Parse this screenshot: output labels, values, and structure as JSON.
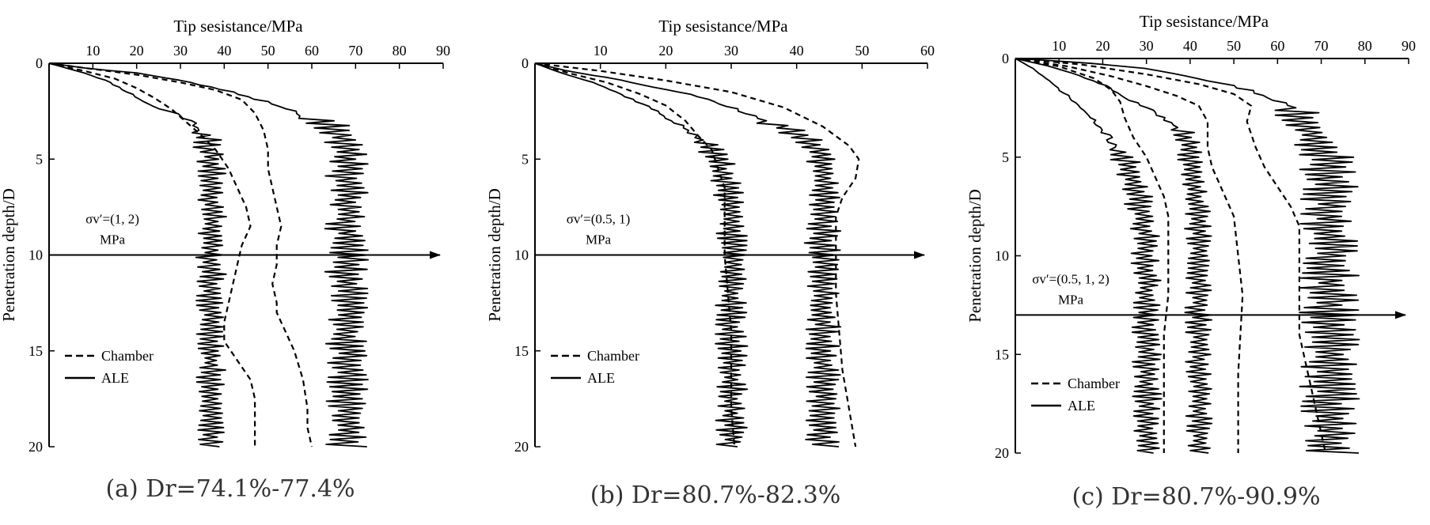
{
  "chart_data": [
    {
      "type": "line",
      "xlabel": "Tip sesistance/MPa",
      "ylabel": "Penetration depth/D",
      "xlim": [
        0,
        90
      ],
      "ylim": [
        0,
        20
      ],
      "xticks": [
        10,
        20,
        30,
        40,
        50,
        60,
        70,
        80,
        90
      ],
      "yticks": [
        0,
        5,
        10,
        15,
        20
      ],
      "y_inverted": true,
      "legend": {
        "placement": "bottom-left",
        "entries": [
          {
            "label": "Chamber",
            "style": "dashed"
          },
          {
            "label": "ALE",
            "style": "solid"
          }
        ]
      },
      "annotation": {
        "text": "σv′=(1, 2)",
        "unit": "MPa",
        "arrow_depth": 10
      },
      "caption": "(a) Dr=74.1%-77.4%",
      "series": [
        {
          "style": "dashed",
          "points": [
            [
              0,
              0
            ],
            [
              8,
              0.4
            ],
            [
              15,
              0.8
            ],
            [
              20,
              1.3
            ],
            [
              24,
              1.8
            ],
            [
              28,
              2.4
            ],
            [
              31,
              3
            ],
            [
              35,
              3.8
            ],
            [
              38,
              4.5
            ],
            [
              41,
              5.5
            ],
            [
              43,
              6.5
            ],
            [
              45,
              7.5
            ],
            [
              46,
              8.5
            ],
            [
              44,
              9.5
            ],
            [
              43,
              10.5
            ],
            [
              42,
              11.5
            ],
            [
              41,
              12.5
            ],
            [
              40,
              13.5
            ],
            [
              40,
              14.5
            ],
            [
              43,
              15.5
            ],
            [
              46,
              16.5
            ],
            [
              47,
              17.5
            ],
            [
              47,
              18.5
            ],
            [
              47,
              20
            ]
          ]
        },
        {
          "style": "dashed",
          "points": [
            [
              0,
              0
            ],
            [
              10,
              0.3
            ],
            [
              20,
              0.6
            ],
            [
              30,
              1
            ],
            [
              38,
              1.4
            ],
            [
              44,
              1.9
            ],
            [
              47,
              2.6
            ],
            [
              49,
              3.5
            ],
            [
              50,
              4.5
            ],
            [
              50,
              5.5
            ],
            [
              51,
              6.5
            ],
            [
              52,
              7.5
            ],
            [
              53,
              8.5
            ],
            [
              52,
              9.5
            ],
            [
              52,
              10.5
            ],
            [
              51,
              11.5
            ],
            [
              52,
              12.5
            ],
            [
              52,
              13
            ],
            [
              54,
              14
            ],
            [
              56,
              15
            ],
            [
              58,
              16.5
            ],
            [
              59,
              18
            ],
            [
              59,
              19
            ],
            [
              60,
              20
            ]
          ]
        },
        {
          "style": "solid",
          "seed": 11,
          "points": [
            [
              0,
              0
            ],
            [
              8,
              0.5
            ],
            [
              13,
              0.9
            ],
            [
              18,
              1.5
            ],
            [
              21,
              1.9
            ],
            [
              24,
              2.3
            ],
            [
              29,
              2.6
            ],
            [
              33,
              3.1
            ],
            [
              35,
              3.5
            ],
            [
              36,
              4
            ],
            [
              37,
              5
            ],
            [
              37,
              8
            ],
            [
              37,
              12
            ],
            [
              37,
              16
            ],
            [
              37,
              20
            ]
          ],
          "jitter_from": 3.5,
          "amp": 3.5
        },
        {
          "style": "solid",
          "seed": 23,
          "points": [
            [
              0,
              0
            ],
            [
              10,
              0.3
            ],
            [
              20,
              0.5
            ],
            [
              30,
              0.9
            ],
            [
              40,
              1.4
            ],
            [
              48,
              1.9
            ],
            [
              54,
              2.3
            ],
            [
              58,
              2.7
            ],
            [
              63,
              3.1
            ],
            [
              66,
              3.6
            ],
            [
              68,
              4.3
            ],
            [
              68,
              8
            ],
            [
              68,
              12
            ],
            [
              68,
              16
            ],
            [
              68,
              20
            ]
          ],
          "jitter_from": 2.8,
          "amp": 5
        }
      ]
    },
    {
      "type": "line",
      "xlabel": "Tip sesistance/MPa",
      "ylabel": "Penetration depth/D",
      "xlim": [
        0,
        60
      ],
      "ylim": [
        0,
        20
      ],
      "xticks": [
        10,
        20,
        30,
        40,
        50,
        60
      ],
      "yticks": [
        0,
        5,
        10,
        15,
        20
      ],
      "y_inverted": true,
      "legend": {
        "placement": "bottom-left",
        "entries": [
          {
            "label": "Chamber",
            "style": "dashed"
          },
          {
            "label": "ALE",
            "style": "solid"
          }
        ]
      },
      "annotation": {
        "text": "σv′=(0.5, 1)",
        "unit": "MPa",
        "arrow_depth": 10
      },
      "caption": "(b) Dr=80.7%-82.3%",
      "series": [
        {
          "style": "dashed",
          "points": [
            [
              0,
              0
            ],
            [
              5,
              0.5
            ],
            [
              11,
              1
            ],
            [
              16,
              1.6
            ],
            [
              20,
              2.2
            ],
            [
              23,
              3
            ],
            [
              25,
              3.8
            ],
            [
              27,
              4.5
            ],
            [
              28,
              5.5
            ],
            [
              29,
              6.5
            ],
            [
              29,
              8
            ],
            [
              29,
              10
            ],
            [
              29.5,
              12
            ],
            [
              30,
              14
            ],
            [
              30,
              16
            ],
            [
              30,
              18
            ],
            [
              30.5,
              20
            ]
          ]
        },
        {
          "style": "dashed",
          "points": [
            [
              0,
              0
            ],
            [
              10,
              0.4
            ],
            [
              20,
              0.9
            ],
            [
              30,
              1.5
            ],
            [
              38,
              2.3
            ],
            [
              44,
              3.3
            ],
            [
              48,
              4.3
            ],
            [
              49.5,
              5
            ],
            [
              49,
              6
            ],
            [
              47,
              7
            ],
            [
              46,
              8
            ],
            [
              46,
              10
            ],
            [
              46,
              12
            ],
            [
              46.5,
              14
            ],
            [
              47,
              16
            ],
            [
              48,
              18
            ],
            [
              49,
              20
            ]
          ]
        },
        {
          "style": "solid",
          "seed": 37,
          "points": [
            [
              0,
              0
            ],
            [
              4,
              0.5
            ],
            [
              9,
              1
            ],
            [
              13,
              1.6
            ],
            [
              17,
              2.2
            ],
            [
              20,
              2.8
            ],
            [
              23,
              3.4
            ],
            [
              25,
              4
            ],
            [
              27,
              4.6
            ],
            [
              28,
              5.2
            ],
            [
              29,
              6
            ],
            [
              30,
              8
            ],
            [
              30,
              12
            ],
            [
              30,
              16
            ],
            [
              30,
              20
            ]
          ],
          "jitter_from": 4,
          "amp": 2.5
        },
        {
          "style": "solid",
          "seed": 53,
          "points": [
            [
              0,
              0
            ],
            [
              5,
              0.4
            ],
            [
              12,
              0.8
            ],
            [
              19,
              1.3
            ],
            [
              26,
              1.8
            ],
            [
              30,
              2.3
            ],
            [
              34,
              2.8
            ],
            [
              38,
              3.3
            ],
            [
              41,
              3.9
            ],
            [
              43,
              4.5
            ],
            [
              44,
              5.5
            ],
            [
              44,
              8
            ],
            [
              44,
              12
            ],
            [
              44,
              16
            ],
            [
              44,
              20
            ]
          ],
          "jitter_from": 3,
          "amp": 2.8
        }
      ]
    },
    {
      "type": "line",
      "xlabel": "Tip sesistance/MPa",
      "ylabel": "Penetration depth/D",
      "xlim": [
        0,
        90
      ],
      "ylim": [
        0,
        20
      ],
      "xticks": [
        10,
        20,
        30,
        40,
        50,
        60,
        70,
        80,
        90
      ],
      "yticks": [
        0,
        5,
        10,
        15,
        20
      ],
      "y_inverted": true,
      "legend": {
        "placement": "bottom-left",
        "entries": [
          {
            "label": "Chamber",
            "style": "dashed"
          },
          {
            "label": "ALE",
            "style": "solid"
          }
        ]
      },
      "annotation": {
        "text": "σv′=(0.5, 1, 2)",
        "unit": "MPa",
        "arrow_depth": 13
      },
      "caption": "(c) Dr=80.7%-90.9%",
      "series": [
        {
          "style": "dashed",
          "points": [
            [
              0,
              0
            ],
            [
              10,
              0.4
            ],
            [
              18,
              1
            ],
            [
              22,
              1.6
            ],
            [
              24,
              2.2
            ],
            [
              25,
              3
            ],
            [
              27,
              4
            ],
            [
              30,
              5
            ],
            [
              32,
              6
            ],
            [
              34,
              7
            ],
            [
              35,
              8
            ],
            [
              35,
              10
            ],
            [
              35,
              12
            ],
            [
              34,
              14
            ],
            [
              34,
              16
            ],
            [
              34,
              18
            ],
            [
              34,
              20
            ]
          ]
        },
        {
          "style": "dashed",
          "points": [
            [
              0,
              0
            ],
            [
              12,
              0.4
            ],
            [
              22,
              0.9
            ],
            [
              30,
              1.4
            ],
            [
              37,
              1.9
            ],
            [
              42,
              2.4
            ],
            [
              44,
              3.2
            ],
            [
              44,
              4.5
            ],
            [
              45,
              5.5
            ],
            [
              48,
              7
            ],
            [
              50,
              8
            ],
            [
              51,
              10
            ],
            [
              52,
              12
            ],
            [
              51.5,
              14
            ],
            [
              51,
              16
            ],
            [
              51,
              18
            ],
            [
              51,
              20
            ]
          ]
        },
        {
          "style": "dashed",
          "points": [
            [
              0,
              0
            ],
            [
              15,
              0.3
            ],
            [
              30,
              0.8
            ],
            [
              42,
              1.3
            ],
            [
              50,
              1.8
            ],
            [
              54,
              2.4
            ],
            [
              53,
              3.2
            ],
            [
              55,
              4.5
            ],
            [
              57,
              5.5
            ],
            [
              60,
              6.5
            ],
            [
              63,
              7.5
            ],
            [
              65,
              8.5
            ],
            [
              65,
              10
            ],
            [
              65,
              12
            ],
            [
              65,
              14
            ],
            [
              67,
              16
            ],
            [
              69,
              18
            ],
            [
              71,
              20
            ]
          ]
        },
        {
          "style": "solid",
          "seed": 71,
          "points": [
            [
              0,
              0
            ],
            [
              4,
              0.5
            ],
            [
              8,
              1.2
            ],
            [
              12,
              1.9
            ],
            [
              15,
              2.5
            ],
            [
              18,
              3.2
            ],
            [
              21,
              3.9
            ],
            [
              23,
              4.5
            ],
            [
              25,
              5.2
            ],
            [
              27,
              6
            ],
            [
              28,
              7
            ],
            [
              30,
              9
            ],
            [
              30,
              13
            ],
            [
              30,
              17
            ],
            [
              30,
              20
            ]
          ],
          "jitter_from": 4.5,
          "amp": 3.5
        },
        {
          "style": "solid",
          "seed": 89,
          "points": [
            [
              0,
              0
            ],
            [
              8,
              0.4
            ],
            [
              15,
              0.9
            ],
            [
              21,
              1.4
            ],
            [
              25,
              2
            ],
            [
              30,
              2.5
            ],
            [
              34,
              3
            ],
            [
              37,
              3.5
            ],
            [
              39,
              4
            ],
            [
              40,
              4.8
            ],
            [
              41,
              6
            ],
            [
              42,
              9
            ],
            [
              42,
              13
            ],
            [
              42,
              17
            ],
            [
              42,
              20
            ]
          ],
          "jitter_from": 3.5,
          "amp": 3.2
        },
        {
          "style": "solid",
          "seed": 97,
          "points": [
            [
              0,
              0
            ],
            [
              15,
              0.2
            ],
            [
              30,
              0.5
            ],
            [
              40,
              0.9
            ],
            [
              48,
              1.3
            ],
            [
              55,
              1.7
            ],
            [
              60,
              2.1
            ],
            [
              63,
              2.5
            ],
            [
              65,
              3
            ],
            [
              67,
              3.6
            ],
            [
              70,
              4.3
            ],
            [
              72,
              6
            ],
            [
              72,
              10
            ],
            [
              72,
              15
            ],
            [
              72,
              20
            ]
          ],
          "jitter_from": 2.5,
          "amp": 7
        }
      ]
    }
  ]
}
